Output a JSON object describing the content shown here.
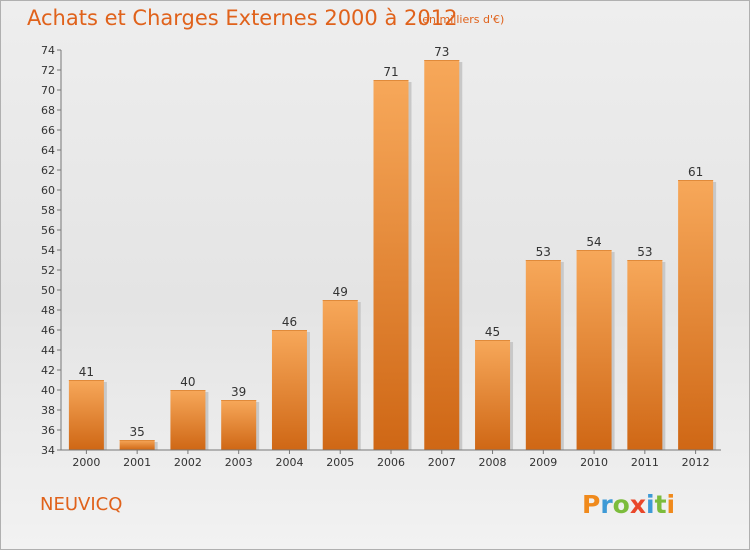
{
  "header": {
    "title": "Achats et Charges Externes 2000 à 2012",
    "unit": "(en milliers d'€)"
  },
  "footer": {
    "place": "NEUVICQ",
    "logo": "Proxiti"
  },
  "colors": {
    "accent": "#e0621b",
    "bar_top": "#f7a85a",
    "bar_bottom": "#cf6715",
    "logo_letters": [
      "#f08a1c",
      "#3e9ad6",
      "#7cbc3c",
      "#e9472a",
      "#3e9ad6",
      "#7cbc3c",
      "#f08a1c"
    ]
  },
  "chart_data": {
    "type": "bar",
    "categories": [
      "2000",
      "2001",
      "2002",
      "2003",
      "2004",
      "2005",
      "2006",
      "2007",
      "2008",
      "2009",
      "2010",
      "2011",
      "2012"
    ],
    "values": [
      41,
      35,
      40,
      39,
      46,
      49,
      71,
      73,
      45,
      53,
      54,
      53,
      61
    ],
    "ylim": [
      34,
      74
    ],
    "yticks": [
      34,
      36,
      38,
      40,
      42,
      44,
      46,
      48,
      50,
      52,
      54,
      56,
      58,
      60,
      62,
      64,
      66,
      68,
      70,
      72,
      74
    ],
    "grid": false,
    "data_labels": true
  }
}
